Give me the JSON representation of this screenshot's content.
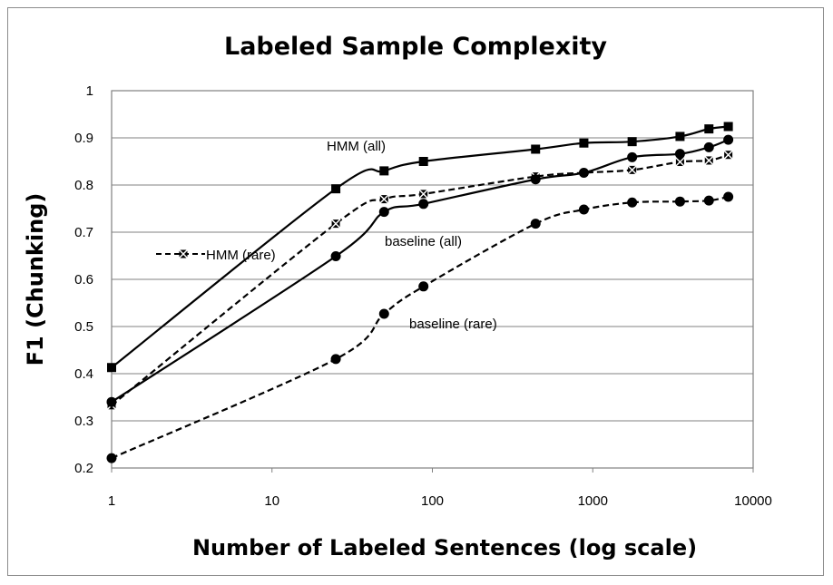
{
  "chart_data": {
    "type": "line",
    "title": "Labeled Sample Complexity",
    "xlabel": "Number of Labeled Sentences (log scale)",
    "ylabel": "F1 (Chunking)",
    "x_scale": "log",
    "xlim": [
      1,
      10000
    ],
    "ylim": [
      0.2,
      1
    ],
    "x_ticks": [
      "1",
      "10",
      "100",
      "1000",
      "10000"
    ],
    "y_ticks": [
      "0.2",
      "0.3",
      "0.4",
      "0.5",
      "0.6",
      "0.7",
      "0.8",
      "0.9",
      "1"
    ],
    "grid": "horizontal",
    "legend": "left",
    "series": [
      {
        "name": "HMM (all)",
        "line": "solid",
        "marker": "square",
        "x": [
          1,
          25,
          50,
          88,
          440,
          880,
          1760,
          3500,
          5300,
          7000
        ],
        "y": [
          0.413,
          0.792,
          0.83,
          0.85,
          0.876,
          0.889,
          0.892,
          0.903,
          0.919,
          0.924
        ]
      },
      {
        "name": "HMM (rare)",
        "line": "dashed",
        "marker": "x-square",
        "x": [
          1,
          25,
          50,
          88,
          440,
          880,
          1760,
          3500,
          5300,
          7000
        ],
        "y": [
          0.333,
          0.718,
          0.77,
          0.781,
          0.818,
          0.826,
          0.832,
          0.849,
          0.852,
          0.864
        ]
      },
      {
        "name": "baseline (all)",
        "line": "solid",
        "marker": "circle",
        "x": [
          1,
          25,
          50,
          88,
          440,
          880,
          1760,
          3500,
          5300,
          7000
        ],
        "y": [
          0.34,
          0.649,
          0.743,
          0.76,
          0.812,
          0.826,
          0.859,
          0.866,
          0.88,
          0.896
        ]
      },
      {
        "name": "baseline (rare)",
        "line": "dashed",
        "marker": "circle",
        "x": [
          1,
          25,
          50,
          88,
          440,
          880,
          1760,
          3500,
          5300,
          7000
        ],
        "y": [
          0.221,
          0.431,
          0.527,
          0.585,
          0.718,
          0.748,
          0.763,
          0.765,
          0.767,
          0.775
        ]
      }
    ],
    "annotations": {
      "hmm_all": "HMM (all)",
      "hmm_rare": "HMM (rare)",
      "baseline_all": "baseline (all)",
      "baseline_rare": "baseline (rare)"
    }
  }
}
